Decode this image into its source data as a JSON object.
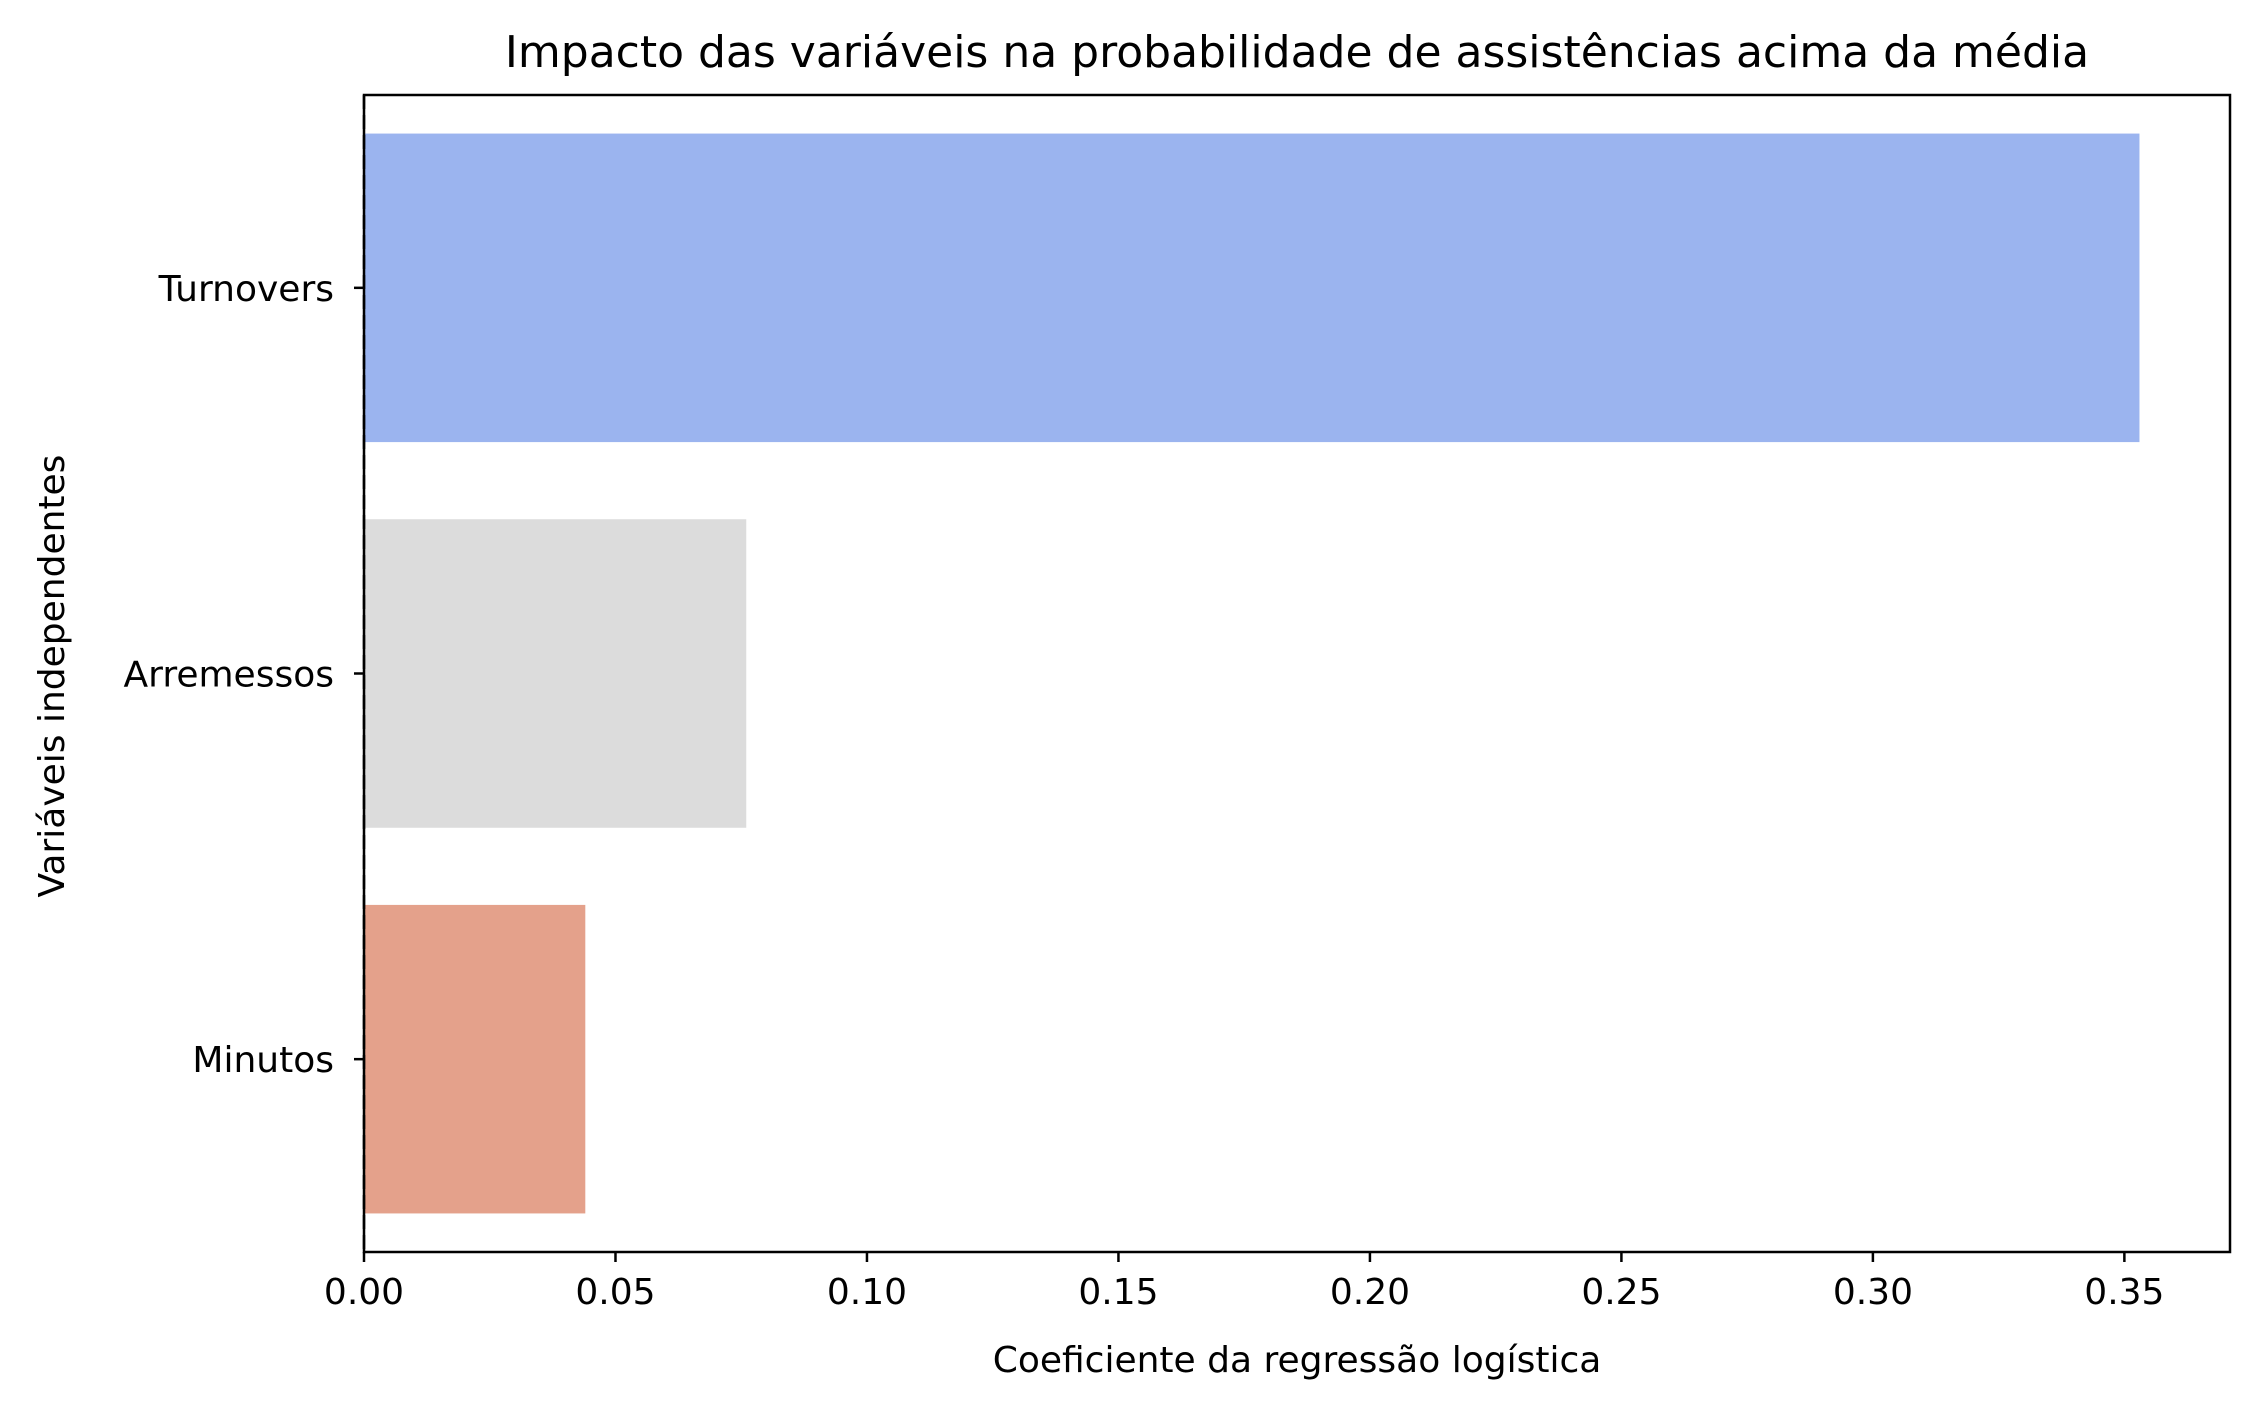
{
  "chart_data": {
    "type": "bar",
    "orientation": "horizontal",
    "title": "Impacto das variáveis na probabilidade de assistências acima da média",
    "xlabel": "Coeficiente da regressão logística",
    "ylabel": "Variáveis independentes",
    "categories": [
      "Turnovers",
      "Arremessos",
      "Minutos"
    ],
    "values": [
      0.353,
      0.076,
      0.044
    ],
    "colors": [
      "#9bb4ef",
      "#dcdcdc",
      "#e4a18b"
    ],
    "xlim": [
      0,
      0.371
    ],
    "xticks": [
      "0.00",
      "0.05",
      "0.10",
      "0.15",
      "0.20",
      "0.25",
      "0.30",
      "0.35"
    ],
    "reference_line": {
      "x": 0,
      "style": "dashed"
    },
    "grid": false,
    "legend": "none"
  }
}
